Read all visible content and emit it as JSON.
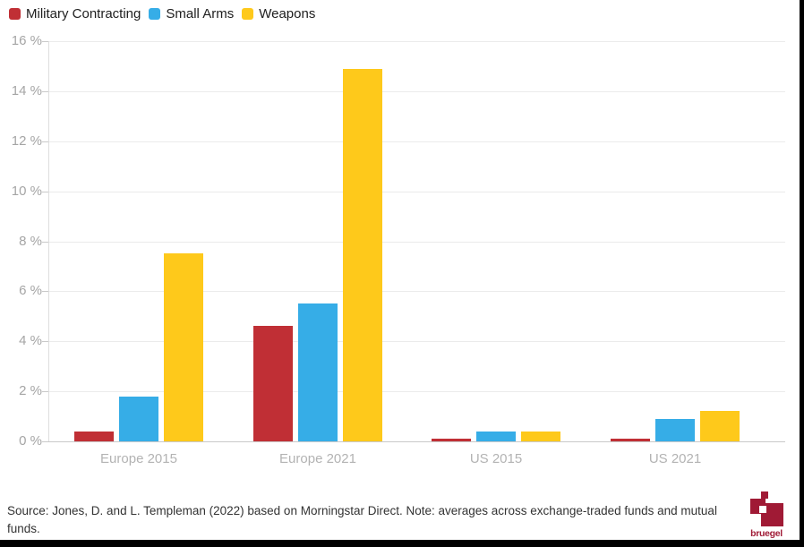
{
  "legend": {
    "items": [
      {
        "label": "Military Contracting",
        "color": "#c02f35"
      },
      {
        "label": "Small Arms",
        "color": "#36ade7"
      },
      {
        "label": "Weapons",
        "color": "#fec91b"
      }
    ]
  },
  "chart_data": {
    "type": "bar",
    "categories": [
      "Europe 2015",
      "Europe 2021",
      "US 2015",
      "US 2021"
    ],
    "series": [
      {
        "name": "Military Contracting",
        "color": "#c02f35",
        "values": [
          0.4,
          4.6,
          0.1,
          0.1
        ]
      },
      {
        "name": "Small Arms",
        "color": "#36ade7",
        "values": [
          1.8,
          5.5,
          0.4,
          0.9
        ]
      },
      {
        "name": "Weapons",
        "color": "#fec91b",
        "values": [
          7.5,
          14.9,
          0.4,
          1.2
        ]
      }
    ],
    "xlabel": "",
    "ylabel": "",
    "ylim": [
      0,
      16
    ],
    "ytick_step": 2,
    "yticks": [
      "0 %",
      "2 %",
      "4 %",
      "6 %",
      "8 %",
      "10 %",
      "12 %",
      "14 %",
      "16 %"
    ],
    "grid": true,
    "legend_position": "top-left"
  },
  "footer": {
    "source_note": "Source: Jones, D. and L. Templeman (2022) based on Morningstar Direct. Note: averages across exchange-traded funds and mutual funds."
  },
  "logo": {
    "wordmark": "bruegel",
    "color": "#a01a35"
  }
}
